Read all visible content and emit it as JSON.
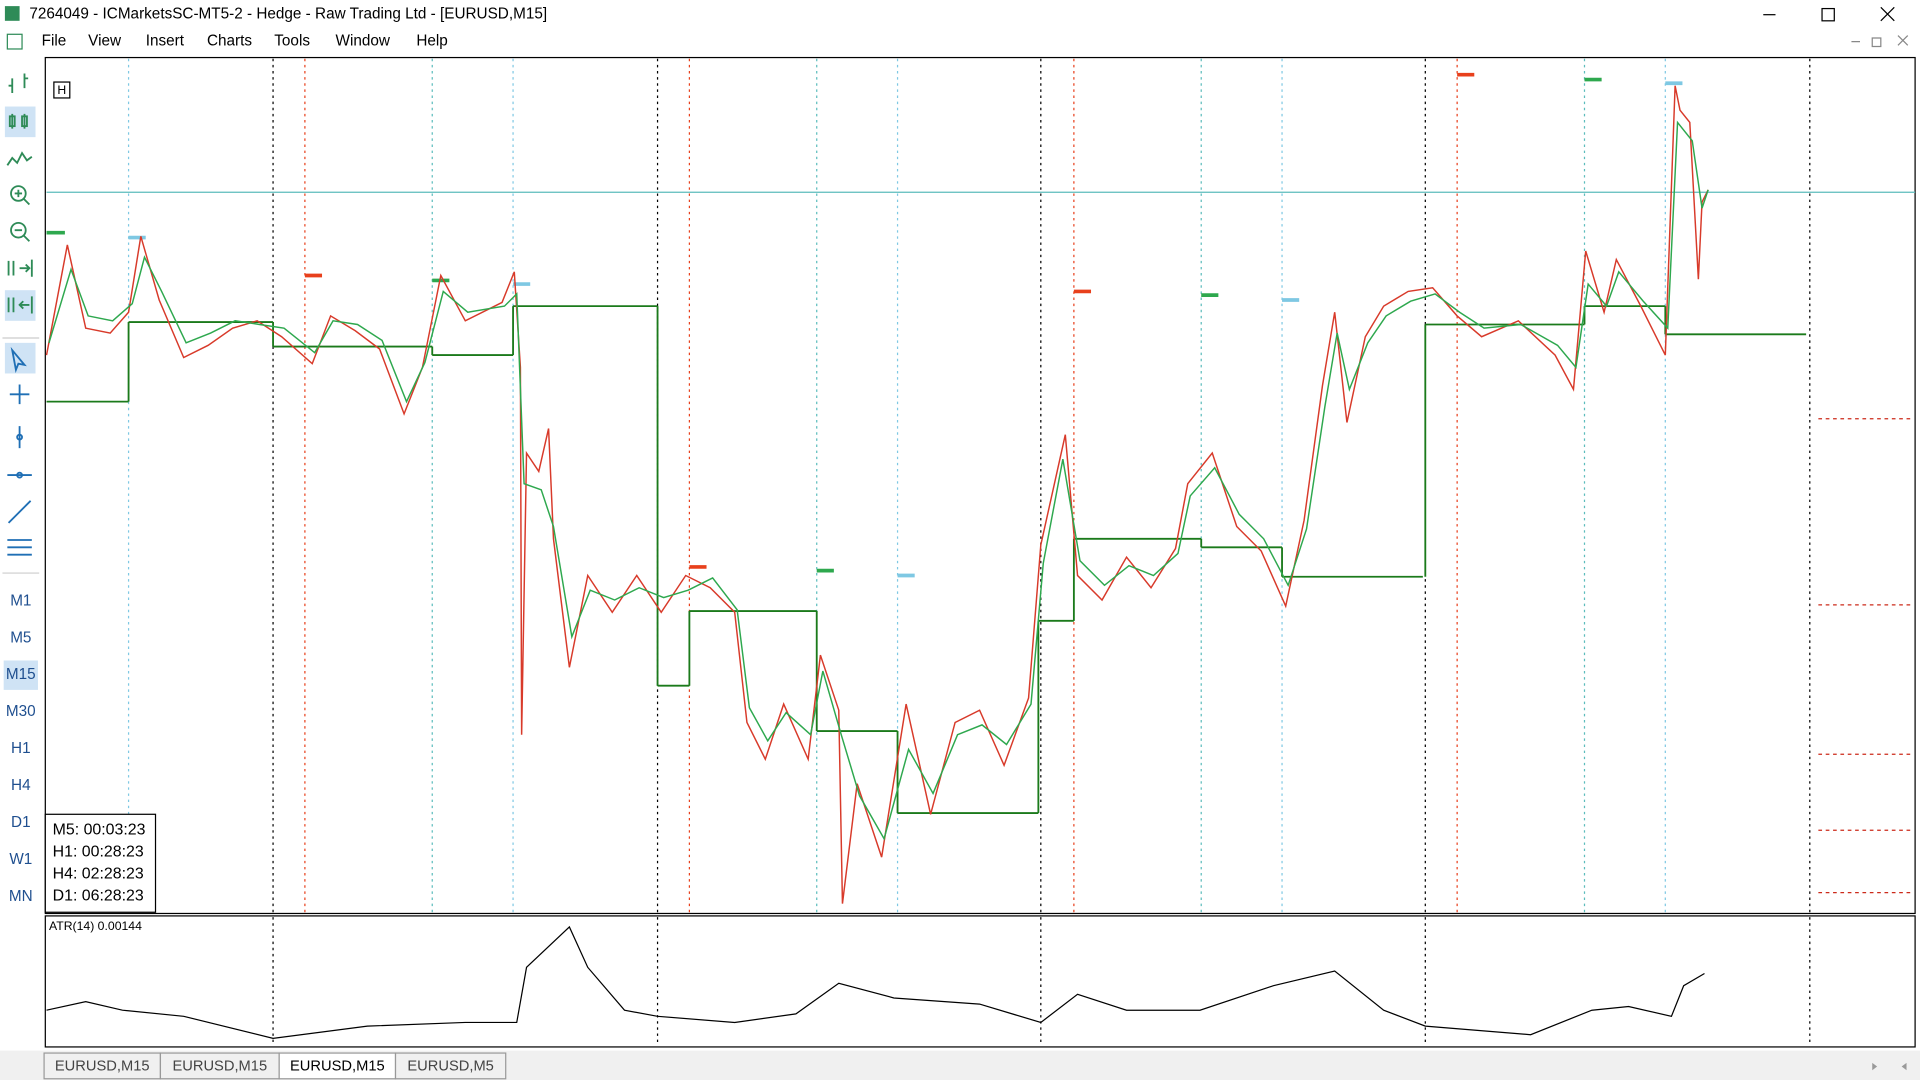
{
  "window": {
    "title": "7264049 - ICMarketsSC-MT5-2 - Hedge - Raw Trading Ltd - [EURUSD,M15]"
  },
  "menu": [
    "File",
    "View",
    "Insert",
    "Charts",
    "Tools",
    "Window",
    "Help"
  ],
  "timeframes": [
    "M1",
    "M5",
    "M15",
    "M30",
    "H1",
    "H4",
    "D1",
    "W1",
    "MN"
  ],
  "active_timeframe": 2,
  "chart": {
    "marker": "H",
    "timers": [
      "M5: 00:03:23",
      "H1: 00:28:23",
      "H4: 02:28:23",
      "D1: 06:28:23"
    ],
    "indicator_label": "ATR(14) 0.00144"
  },
  "tabs": [
    "EURUSD,M15",
    "EURUSD,M15",
    "EURUSD,M15",
    "EURUSD,M5"
  ],
  "active_tab": 2
}
